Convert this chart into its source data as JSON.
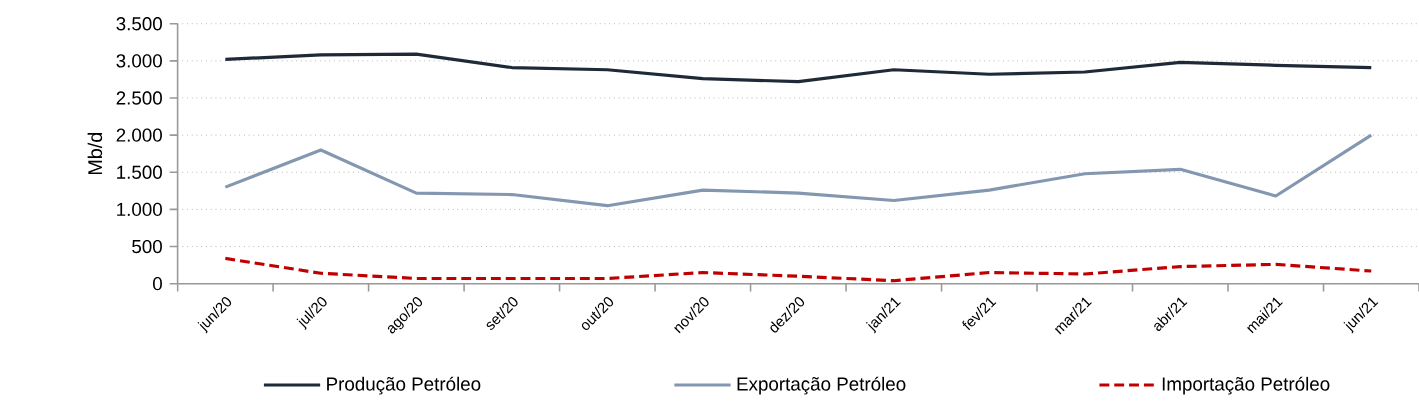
{
  "chart_data": {
    "type": "line",
    "ylabel": "Mb/d",
    "categories": [
      "jun/20",
      "jul/20",
      "ago/20",
      "set/20",
      "out/20",
      "nov/20",
      "dez/20",
      "jan/21",
      "fev/21",
      "mar/21",
      "abr/21",
      "mai/21",
      "jun/21"
    ],
    "series": [
      {
        "name": "Produção Petróleo",
        "color": "#1f2a38",
        "values": [
          3020,
          3080,
          3090,
          2910,
          2880,
          2760,
          2720,
          2880,
          2820,
          2850,
          2980,
          2940,
          2910
        ]
      },
      {
        "name": "Exportação Petróleo",
        "color": "#8497b0",
        "values": [
          1300,
          1800,
          1220,
          1200,
          1050,
          1260,
          1220,
          1120,
          1260,
          1480,
          1540,
          1180,
          2000
        ]
      },
      {
        "name": "Importação Petróleo",
        "color": "#c00000",
        "line_style": "dashed",
        "values": [
          340,
          140,
          70,
          70,
          70,
          150,
          100,
          40,
          150,
          130,
          230,
          260,
          170
        ]
      }
    ],
    "ylim": [
      0,
      3500
    ],
    "yticks": [
      {
        "value": 0,
        "label": "0"
      },
      {
        "value": 500,
        "label": "500"
      },
      {
        "value": 1000,
        "label": "1.000"
      },
      {
        "value": 1500,
        "label": "1.500"
      },
      {
        "value": 2000,
        "label": "2.000"
      },
      {
        "value": 2500,
        "label": "2.500"
      },
      {
        "value": 3000,
        "label": "3.000"
      },
      {
        "value": 3500,
        "label": "3.500"
      }
    ],
    "grid": "y",
    "legend": "bottom",
    "line_style": "solid",
    "marker": "none"
  }
}
